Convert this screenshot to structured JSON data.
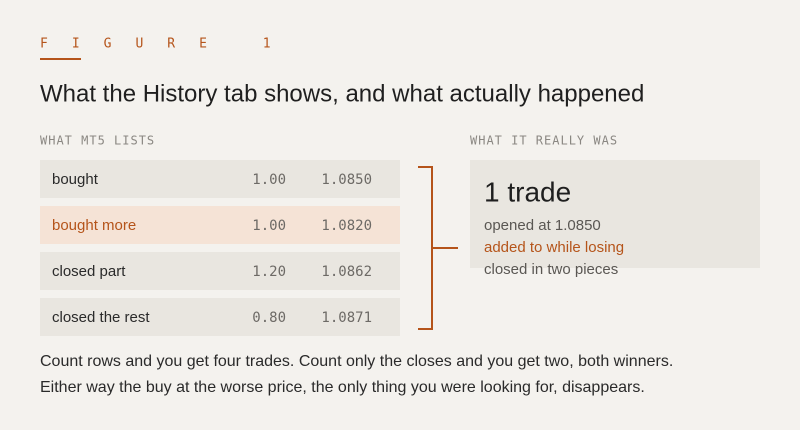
{
  "figure_label": "FIGURE 1",
  "title": "What the History tab shows, and what actually happened",
  "left": {
    "heading": "WHAT MT5 LISTS",
    "rows": [
      {
        "label": "bought",
        "volume": "1.00",
        "price": "1.0850",
        "highlight": false
      },
      {
        "label": "bought more",
        "volume": "1.00",
        "price": "1.0820",
        "highlight": true
      },
      {
        "label": "closed part",
        "volume": "1.20",
        "price": "1.0862",
        "highlight": false
      },
      {
        "label": "closed the rest",
        "volume": "0.80",
        "price": "1.0871",
        "highlight": false
      }
    ]
  },
  "right": {
    "heading": "WHAT IT REALLY WAS",
    "headline": "1 trade",
    "lines": [
      {
        "text": "opened at 1.0850",
        "highlight": false
      },
      {
        "text": "added to while losing",
        "highlight": true
      },
      {
        "text": "closed in two pieces",
        "highlight": false
      }
    ]
  },
  "caption": [
    "Count rows and you get four trades. Count only the closes and you get two, both winners.",
    "Either way the buy at the worse price, the only thing you were looking for, disappears."
  ]
}
